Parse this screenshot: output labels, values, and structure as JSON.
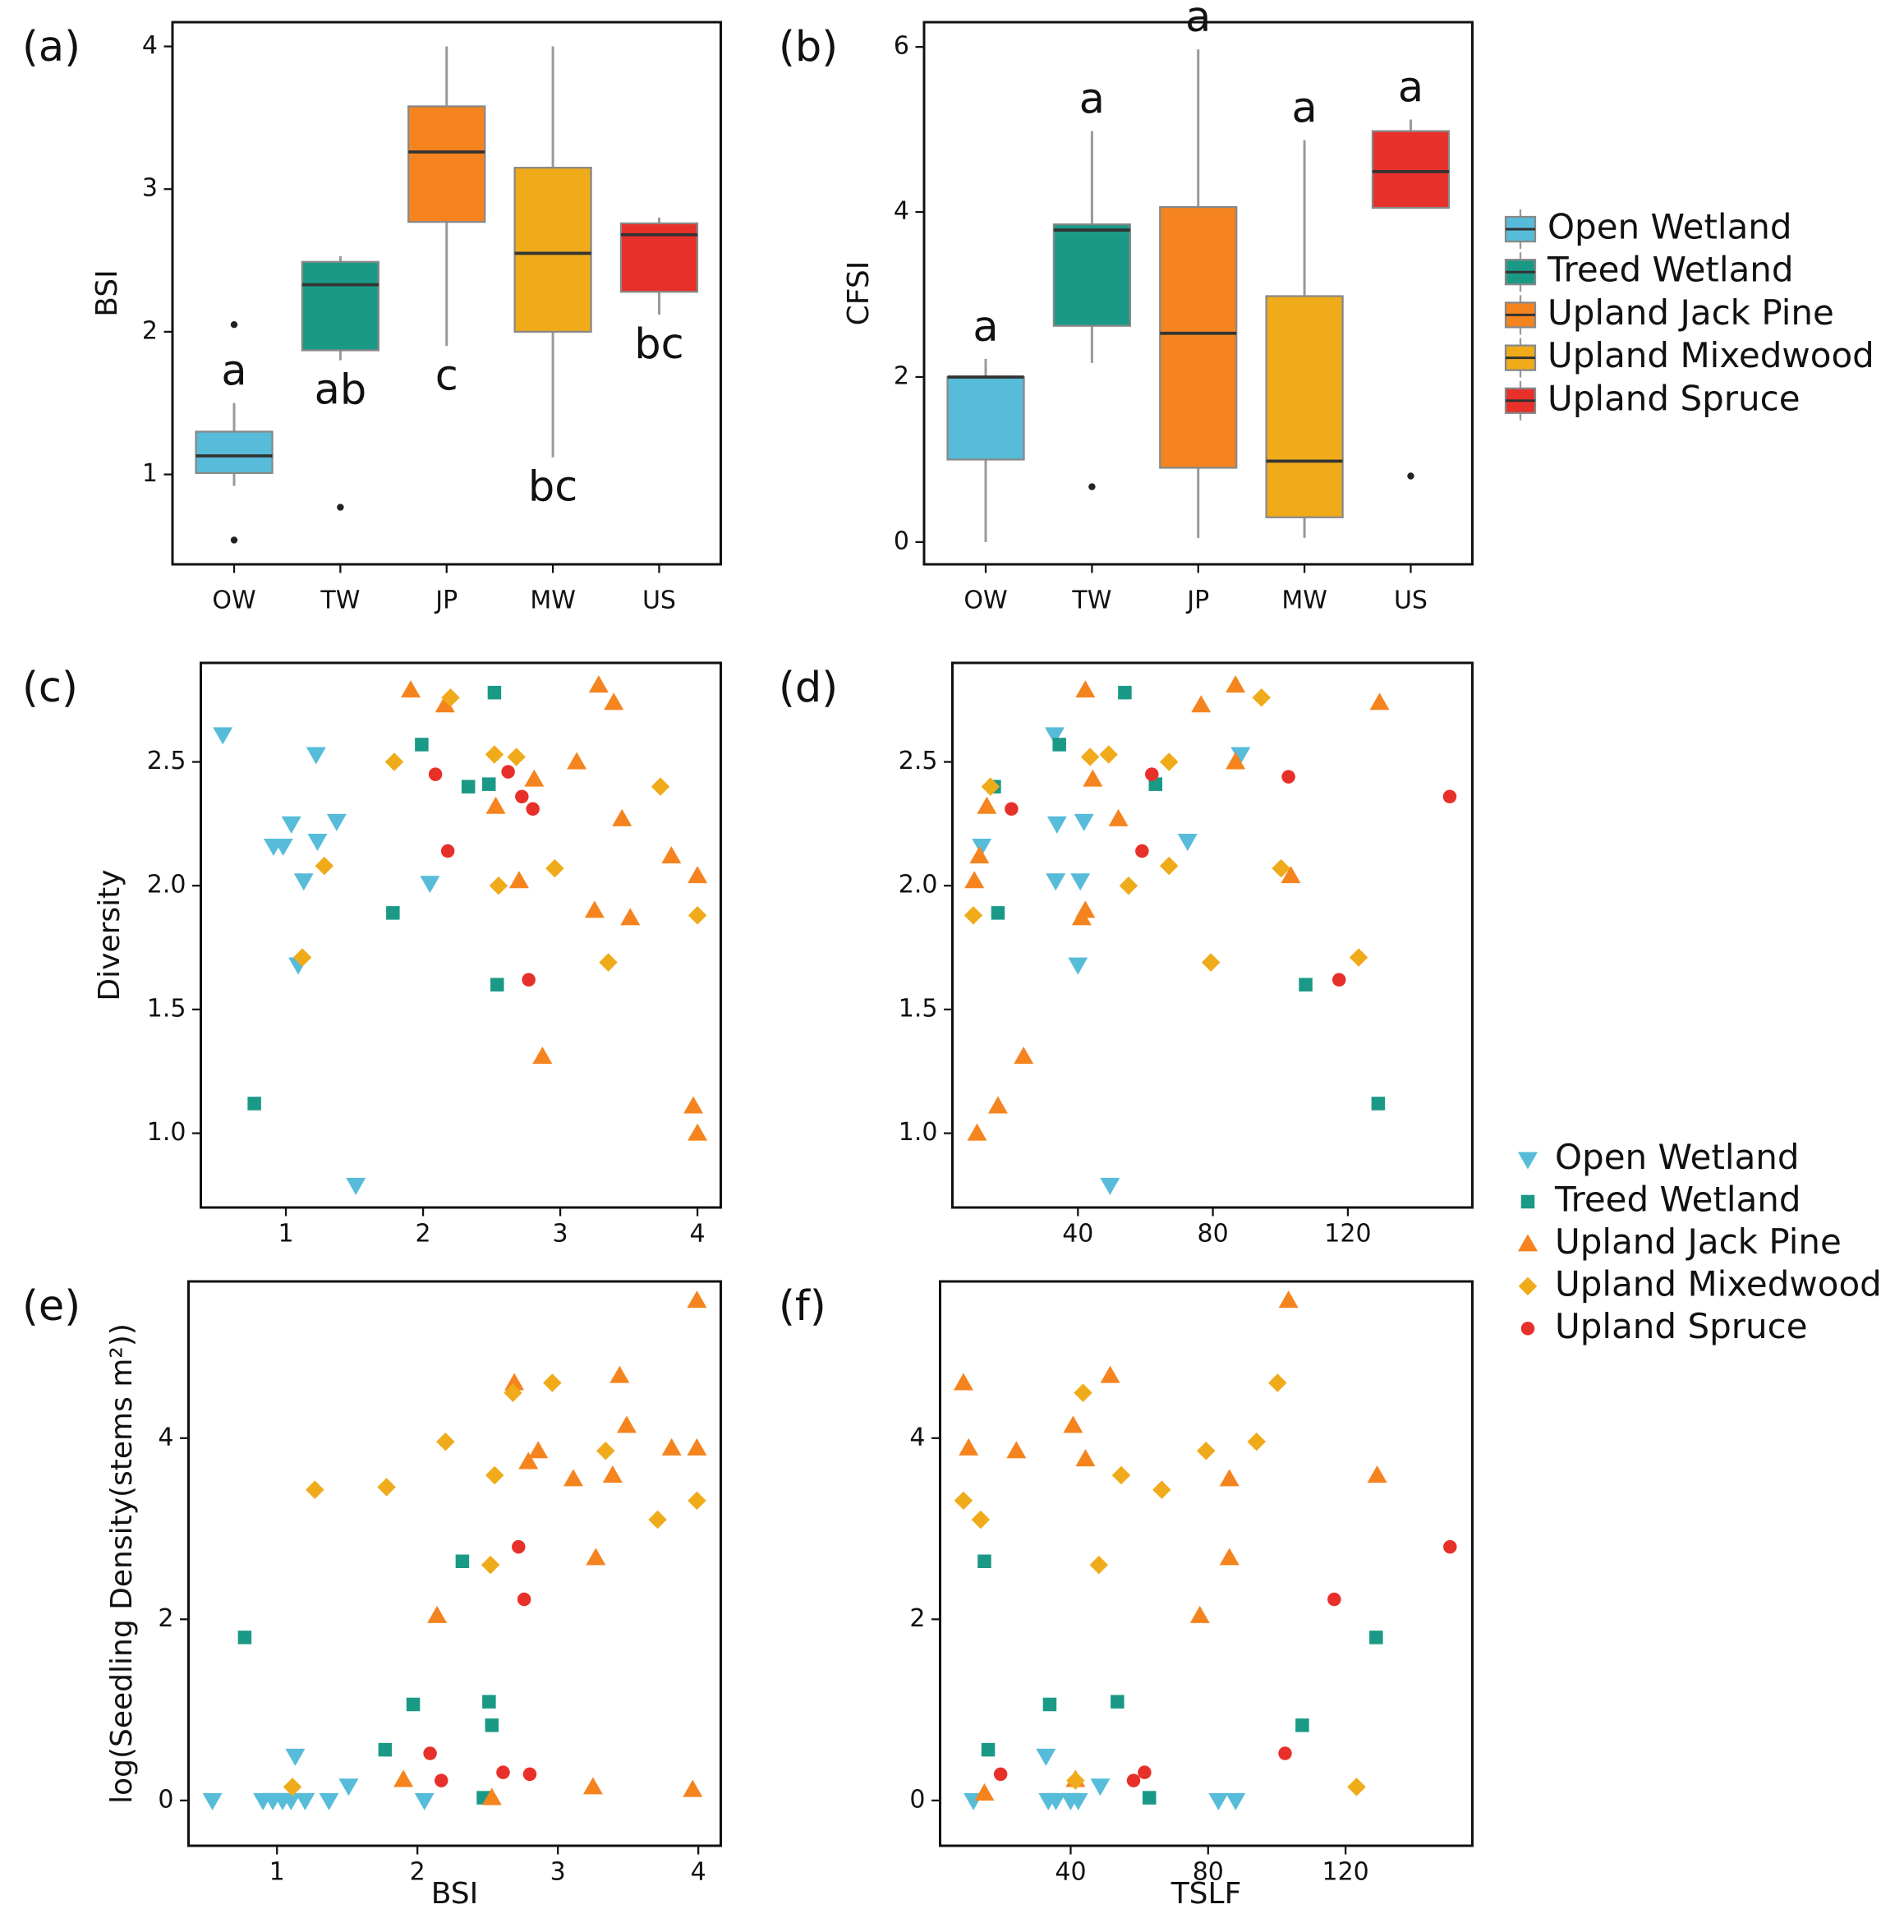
{
  "chart_data": [
    {
      "type": "box",
      "panel": "(a)",
      "ylabel": "BSI",
      "categories": [
        "OW",
        "TW",
        "JP",
        "MW",
        "US"
      ],
      "ylim": [
        0.37,
        4.17
      ],
      "yticks": [
        1,
        2,
        3,
        4
      ],
      "boxes": [
        {
          "color": "#56bcd9",
          "whislo": 0.92,
          "q1": 1.01,
          "median": 1.13,
          "q3": 1.3,
          "whishi": 1.5,
          "outliers": [
            2.05,
            0.54
          ],
          "label": "a"
        },
        {
          "color": "#1a9a86",
          "whislo": 1.8,
          "q1": 1.87,
          "median": 2.33,
          "q3": 2.49,
          "whishi": 2.53,
          "outliers": [
            0.77
          ],
          "label": "ab"
        },
        {
          "color": "#f5841f",
          "whislo": 1.9,
          "q1": 2.77,
          "median": 3.26,
          "q3": 3.58,
          "whishi": 4.0,
          "outliers": [],
          "label": "c"
        },
        {
          "color": "#f0ab1b",
          "whislo": 1.12,
          "q1": 2.0,
          "median": 2.55,
          "q3": 3.15,
          "whishi": 4.0,
          "outliers": [],
          "label": "bc"
        },
        {
          "color": "#e8302a",
          "whislo": 2.12,
          "q1": 2.28,
          "median": 2.68,
          "q3": 2.76,
          "whishi": 2.8,
          "outliers": [],
          "label": "bc"
        }
      ]
    },
    {
      "type": "box",
      "panel": "(b)",
      "ylabel": "CFSI",
      "categories": [
        "OW",
        "TW",
        "JP",
        "MW",
        "US"
      ],
      "ylim": [
        -0.27,
        6.3
      ],
      "yticks": [
        0,
        2,
        4,
        6
      ],
      "legend": [
        {
          "name": "Open Wetland",
          "color": "#56bcd9"
        },
        {
          "name": "Treed Wetland",
          "color": "#1a9a86"
        },
        {
          "name": "Upland Jack Pine",
          "color": "#f5841f"
        },
        {
          "name": "Upland Mixedwood",
          "color": "#f0ab1b"
        },
        {
          "name": "Upland Spruce",
          "color": "#e8302a"
        }
      ],
      "boxes": [
        {
          "color": "#56bcd9",
          "whislo": 0,
          "q1": 1.0,
          "median": 2.0,
          "q3": 2.0,
          "whishi": 2.22,
          "outliers": [],
          "label": "a"
        },
        {
          "color": "#1a9a86",
          "whislo": 2.17,
          "q1": 2.62,
          "median": 3.78,
          "q3": 3.85,
          "whishi": 4.98,
          "outliers": [
            0.67
          ],
          "label": "a"
        },
        {
          "color": "#f5841f",
          "whislo": 0.05,
          "q1": 0.9,
          "median": 2.53,
          "q3": 4.06,
          "whishi": 5.97,
          "outliers": [],
          "label": "a"
        },
        {
          "color": "#f0ab1b",
          "whislo": 0.05,
          "q1": 0.3,
          "median": 0.98,
          "q3": 2.98,
          "whishi": 4.87,
          "outliers": [],
          "label": "a"
        },
        {
          "color": "#e8302a",
          "whislo": 4.05,
          "q1": 4.05,
          "median": 4.49,
          "q3": 4.98,
          "whishi": 5.12,
          "outliers": [
            0.8
          ],
          "label": "a"
        }
      ]
    },
    {
      "type": "scatter",
      "panel": "(c)",
      "ylabel": "Diversity",
      "xlim": [
        0.38,
        4.17
      ],
      "ylim": [
        0.7,
        2.9
      ],
      "xticks": [
        1,
        2,
        3,
        4
      ],
      "yticks": [
        {
          "value": 1,
          "label": "1.0"
        },
        1.5,
        {
          "value": 2,
          "label": "2.0"
        },
        2.5
      ],
      "series": [
        {
          "color": "#56bcd9",
          "marker": "tri-down",
          "x": [
            0.54,
            1.04,
            0.91,
            0.98,
            1.22,
            1.37,
            1.23,
            1.13,
            1.09,
            2.05,
            1.51
          ],
          "values": [
            2.61,
            2.25,
            2.16,
            2.16,
            2.53,
            2.26,
            2.18,
            2.02,
            1.68,
            2.01,
            0.79
          ]
        },
        {
          "color": "#1a9a86",
          "marker": "square",
          "x": [
            0.77,
            1.78,
            1.99,
            2.33,
            2.48,
            2.52,
            2.54
          ],
          "values": [
            1.12,
            1.89,
            2.57,
            2.4,
            2.41,
            2.78,
            1.6
          ]
        },
        {
          "color": "#f5841f",
          "marker": "tri-up",
          "x": [
            1.91,
            2.16,
            2.53,
            2.81,
            2.7,
            3.12,
            3.28,
            3.39,
            3.45,
            3.25,
            3.51,
            3.81,
            4.0,
            3.97,
            4.0,
            2.87
          ],
          "values": [
            2.79,
            2.73,
            2.32,
            2.43,
            2.02,
            2.5,
            2.81,
            2.74,
            2.27,
            1.9,
            1.87,
            2.12,
            2.04,
            1.11,
            1.0,
            1.31
          ]
        },
        {
          "color": "#f0ab1b",
          "marker": "diamond",
          "x": [
            1.79,
            2.2,
            2.52,
            2.68,
            1.28,
            1.12,
            2.55,
            2.96,
            3.35,
            3.73,
            4.0
          ],
          "values": [
            2.5,
            2.76,
            2.53,
            2.52,
            2.08,
            1.71,
            2.0,
            2.07,
            1.69,
            2.4,
            1.88
          ]
        },
        {
          "color": "#e8302a",
          "marker": "circle",
          "x": [
            2.09,
            2.18,
            2.62,
            2.72,
            2.8,
            2.77
          ],
          "values": [
            2.45,
            2.14,
            2.46,
            2.36,
            2.31,
            1.62
          ]
        }
      ]
    },
    {
      "type": "scatter",
      "panel": "(d)",
      "xlim": [
        2.8,
        156.9
      ],
      "ylim": [
        0.7,
        2.9
      ],
      "xticks": [
        40,
        80,
        120
      ],
      "yticks": [
        {
          "value": 1,
          "label": "1.0"
        },
        1.5,
        {
          "value": 2,
          "label": "2.0"
        },
        2.5
      ],
      "series": [
        {
          "name": "Open Wetland",
          "color": "#56bcd9",
          "marker": "tri-down",
          "x": [
            33.1,
            33.8,
            41.8,
            11.5,
            33.4,
            40.7,
            40,
            72.5,
            88.2,
            49.5
          ],
          "values": [
            2.61,
            2.25,
            2.26,
            2.16,
            2.02,
            2.02,
            1.68,
            2.18,
            2.53,
            0.79
          ]
        },
        {
          "name": "Treed Wetland",
          "color": "#1a9a86",
          "marker": "square",
          "x": [
            53.9,
            34.5,
            15.2,
            63,
            16.3,
            107.5,
            129
          ],
          "values": [
            2.78,
            2.57,
            2.4,
            2.41,
            1.89,
            1.6,
            1.12
          ]
        },
        {
          "name": "Upland Jack Pine",
          "color": "#f5841f",
          "marker": "tri-up",
          "x": [
            42.2,
            86.7,
            76.5,
            129.4,
            44.4,
            86.7,
            52,
            13,
            10.8,
            9.3,
            42.2,
            41.1,
            103.1,
            23.9,
            16.3,
            10.1
          ],
          "values": [
            2.79,
            2.81,
            2.73,
            2.74,
            2.43,
            2.5,
            2.27,
            2.32,
            2.12,
            2.02,
            1.9,
            1.87,
            2.04,
            1.31,
            1.11,
            1.0
          ]
        },
        {
          "name": "Upland Mixedwood",
          "color": "#f0ab1b",
          "marker": "diamond",
          "x": [
            94.4,
            43.6,
            49.1,
            67,
            14.1,
            67,
            55,
            9,
            100.2,
            79.4,
            123.2
          ],
          "values": [
            2.76,
            2.52,
            2.53,
            2.5,
            2.4,
            2.08,
            2.0,
            1.88,
            2.07,
            1.69,
            1.71
          ]
        },
        {
          "name": "Upland Spruce",
          "color": "#e8302a",
          "marker": "circle",
          "x": [
            61.9,
            102.4,
            20.3,
            59,
            150.2,
            117.4
          ],
          "values": [
            2.45,
            2.44,
            2.31,
            2.14,
            2.36,
            1.62
          ]
        }
      ]
    },
    {
      "type": "scatter",
      "panel": "(e)",
      "ylabel": "log(Seedling Density(stems m²))",
      "xlabel": "BSI",
      "xlim": [
        0.37,
        4.16
      ],
      "ylim": [
        -0.5,
        5.73
      ],
      "xticks": [
        1,
        2,
        3,
        4
      ],
      "yticks": [
        0,
        2,
        4
      ],
      "series": [
        {
          "color": "#56bcd9",
          "marker": "tri-down",
          "x": [
            0.54,
            0.9,
            0.97,
            1.04,
            1.1,
            1.2,
            1.37,
            1.13,
            1.51,
            2.05
          ],
          "values": [
            0,
            0,
            0,
            0,
            0,
            0,
            0,
            0.49,
            0.16,
            0
          ]
        },
        {
          "color": "#1a9a86",
          "marker": "square",
          "x": [
            0.77,
            1.77,
            1.97,
            2.32,
            2.51,
            2.53,
            2.47
          ],
          "values": [
            1.8,
            0.56,
            1.06,
            2.64,
            1.09,
            0.83,
            0.03
          ]
        },
        {
          "color": "#f5841f",
          "marker": "tri-up",
          "x": [
            1.9,
            2.14,
            2.53,
            2.69,
            2.79,
            2.86,
            3.11,
            3.44,
            3.49,
            3.39,
            3.27,
            3.25,
            3.81,
            3.99,
            3.99,
            3.96
          ],
          "values": [
            0.23,
            2.04,
            0.03,
            4.61,
            3.74,
            3.86,
            3.55,
            4.69,
            4.14,
            3.59,
            2.68,
            0.15,
            3.89,
            3.89,
            5.52,
            0.12
          ]
        },
        {
          "color": "#f0ab1b",
          "marker": "diamond",
          "x": [
            1.27,
            1.78,
            2.2,
            2.55,
            2.52,
            2.68,
            2.96,
            3.34,
            3.71,
            3.99,
            1.11
          ],
          "values": [
            3.43,
            3.46,
            3.96,
            3.59,
            2.6,
            4.5,
            4.61,
            3.86,
            3.1,
            3.31,
            0.15
          ]
        },
        {
          "color": "#e8302a",
          "marker": "circle",
          "x": [
            2.09,
            2.17,
            2.61,
            2.72,
            2.76,
            2.8
          ],
          "values": [
            0.52,
            0.22,
            0.31,
            2.8,
            2.22,
            0.29
          ]
        }
      ]
    },
    {
      "type": "scatter",
      "panel": "(f)",
      "xlabel": "TSLF",
      "xlim": [
        2.0,
        156.9
      ],
      "ylim": [
        -0.5,
        5.73
      ],
      "xticks": [
        40,
        80,
        120
      ],
      "yticks": [
        0,
        2,
        4
      ],
      "series": [
        {
          "color": "#56bcd9",
          "marker": "tri-down",
          "x": [
            11.7,
            32.8,
            33.5,
            35.7,
            40,
            42.2,
            48.6,
            83,
            88
          ],
          "values": [
            0,
            0.49,
            0,
            0,
            0,
            0,
            0.16,
            0,
            0
          ]
        },
        {
          "color": "#1a9a86",
          "marker": "square",
          "x": [
            14.9,
            16,
            33.9,
            53.6,
            62.9,
            107.4,
            128.9
          ],
          "values": [
            2.64,
            0.56,
            1.06,
            1.09,
            0.03,
            0.83,
            1.8
          ]
        },
        {
          "color": "#f5841f",
          "marker": "tri-up",
          "x": [
            8.8,
            10.3,
            24.2,
            40.7,
            44.3,
            51.5,
            14.9,
            41.4,
            77.6,
            86.2,
            86.2,
            103.4,
            129.2
          ],
          "values": [
            4.61,
            3.89,
            3.86,
            4.14,
            3.77,
            4.69,
            0.08,
            0.23,
            2.04,
            3.55,
            2.68,
            5.52,
            3.59
          ]
        },
        {
          "color": "#f0ab1b",
          "marker": "diamond",
          "x": [
            8.8,
            13.8,
            43.6,
            54.7,
            66.5,
            48.2,
            79.4,
            94.1,
            100.2,
            123.2,
            41.4
          ],
          "values": [
            3.31,
            3.1,
            4.5,
            3.59,
            3.43,
            2.6,
            3.86,
            3.96,
            4.61,
            0.15,
            0.22
          ]
        },
        {
          "color": "#e8302a",
          "marker": "circle",
          "x": [
            19.6,
            58.3,
            61.5,
            116.7,
            102.4,
            150.4
          ],
          "values": [
            0.29,
            0.22,
            0.31,
            2.22,
            0.52,
            2.8
          ]
        }
      ]
    }
  ]
}
